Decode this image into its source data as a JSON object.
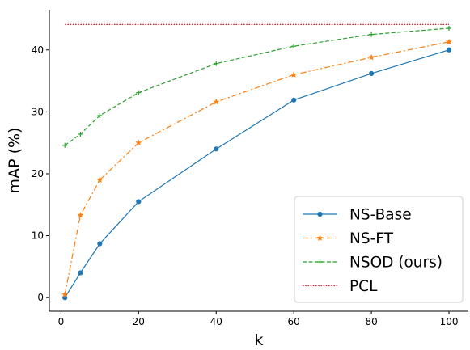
{
  "chart_data": {
    "type": "line",
    "title": "",
    "xlabel": "k",
    "ylabel": "mAP (%)",
    "xlim": [
      -3,
      105
    ],
    "ylim": [
      -2.2,
      46.5
    ],
    "xticks": [
      0,
      20,
      40,
      60,
      80,
      100
    ],
    "yticks": [
      0,
      10,
      20,
      30,
      40
    ],
    "x": [
      1,
      5,
      10,
      20,
      40,
      60,
      80,
      100
    ],
    "grid": false,
    "legend_position": "bottom-right",
    "series": [
      {
        "name": "NS-Base",
        "color": "#1f77b4",
        "dash": "solid",
        "marker": "circle",
        "values": [
          0.0,
          4.0,
          8.7,
          15.5,
          24.0,
          31.9,
          36.2,
          40.0
        ]
      },
      {
        "name": "NS-FT",
        "color": "#ff7f0e",
        "dash": "dashdot",
        "marker": "star",
        "values": [
          0.5,
          13.3,
          19.0,
          25.0,
          31.6,
          36.0,
          38.8,
          41.3
        ]
      },
      {
        "name": "NSOD (ours)",
        "color": "#2ca02c",
        "dash": "dashed",
        "marker": "plus",
        "values": [
          24.6,
          26.4,
          29.4,
          33.1,
          37.8,
          40.6,
          42.5,
          43.5
        ]
      },
      {
        "name": "PCL",
        "color": "#d62728",
        "dash": "dotted",
        "marker": "none",
        "values": [
          44.1,
          44.1,
          44.1,
          44.1,
          44.1,
          44.1,
          44.1,
          44.1
        ]
      }
    ]
  }
}
